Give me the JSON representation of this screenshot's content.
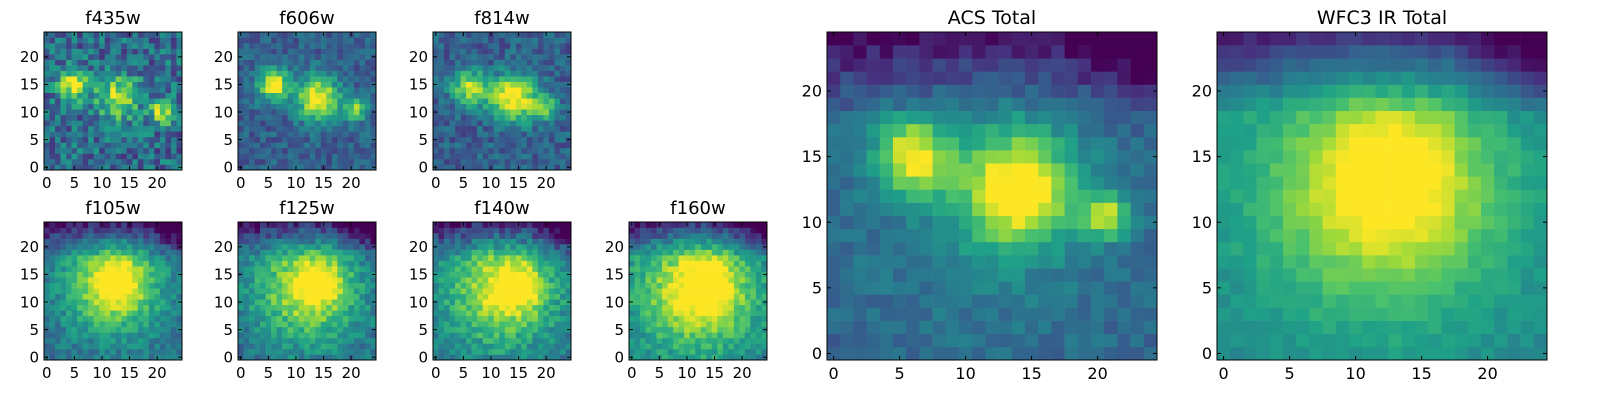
{
  "figure": {
    "description": "Grid of flux cutout images by filter with combined totals"
  },
  "colormap": [
    "#440154",
    "#46327e",
    "#365c8d",
    "#277f8e",
    "#1fa187",
    "#4ac16d",
    "#a0da39",
    "#fde725"
  ],
  "chart_data": [
    {
      "type": "heatmap",
      "title": "f435w",
      "grid_size": 25,
      "xlim": [
        0,
        24
      ],
      "ylim": [
        0,
        24
      ],
      "xticks": [
        "0",
        "5",
        "10",
        "15",
        "20"
      ],
      "yticks": [
        "0",
        "5",
        "10",
        "15",
        "20"
      ],
      "features": {
        "blobs": [
          {
            "x": 5,
            "y": 15,
            "s": 1.8,
            "a": 0.7
          },
          {
            "x": 13,
            "y": 12.5,
            "s": 2.6,
            "a": 0.6
          },
          {
            "x": 21,
            "y": 10,
            "s": 1.6,
            "a": 0.55
          }
        ],
        "noise": 0.35,
        "base": 0.35
      }
    },
    {
      "type": "heatmap",
      "title": "f606w",
      "grid_size": 25,
      "xlim": [
        0,
        24
      ],
      "ylim": [
        0,
        24
      ],
      "xticks": [
        "0",
        "5",
        "10",
        "15",
        "20"
      ],
      "yticks": [
        "0",
        "5",
        "10",
        "15",
        "20"
      ],
      "features": {
        "blobs": [
          {
            "x": 6,
            "y": 15,
            "s": 2.0,
            "a": 0.7
          },
          {
            "x": 14,
            "y": 12.5,
            "s": 2.8,
            "a": 0.7
          },
          {
            "x": 21,
            "y": 10.5,
            "s": 1.5,
            "a": 0.5
          }
        ],
        "noise": 0.2,
        "base": 0.3
      }
    },
    {
      "type": "heatmap",
      "title": "f814w",
      "grid_size": 25,
      "xlim": [
        0,
        24
      ],
      "ylim": [
        0,
        24
      ],
      "xticks": [
        "0",
        "5",
        "10",
        "15",
        "20"
      ],
      "yticks": [
        "0",
        "5",
        "10",
        "15",
        "20"
      ],
      "features": {
        "blobs": [
          {
            "x": 6,
            "y": 14.5,
            "s": 2.2,
            "a": 0.6
          },
          {
            "x": 14,
            "y": 12.5,
            "s": 3.0,
            "a": 0.75
          },
          {
            "x": 20,
            "y": 11,
            "s": 1.7,
            "a": 0.4
          }
        ],
        "noise": 0.22,
        "base": 0.3
      }
    },
    {
      "type": "heatmap",
      "title": "f105w",
      "grid_size": 25,
      "xlim": [
        0,
        24
      ],
      "ylim": [
        0,
        24
      ],
      "xticks": [
        "0",
        "5",
        "10",
        "15",
        "20"
      ],
      "yticks": [
        "0",
        "5",
        "10",
        "15",
        "20"
      ],
      "features": {
        "blobs": [
          {
            "x": 12,
            "y": 13,
            "s": 6.5,
            "a": 0.55
          },
          {
            "x": 13,
            "y": 13.5,
            "s": 3.0,
            "a": 0.3
          }
        ],
        "noise": 0.18,
        "base": 0.35,
        "topfade": 0.35
      }
    },
    {
      "type": "heatmap",
      "title": "f125w",
      "grid_size": 25,
      "xlim": [
        0,
        24
      ],
      "ylim": [
        0,
        24
      ],
      "xticks": [
        "0",
        "5",
        "10",
        "15",
        "20"
      ],
      "yticks": [
        "0",
        "5",
        "10",
        "15",
        "20"
      ],
      "features": {
        "blobs": [
          {
            "x": 12,
            "y": 12.5,
            "s": 7.0,
            "a": 0.55
          },
          {
            "x": 14,
            "y": 13.5,
            "s": 3.0,
            "a": 0.3
          }
        ],
        "noise": 0.2,
        "base": 0.35,
        "topfade": 0.35
      }
    },
    {
      "type": "heatmap",
      "title": "f140w",
      "grid_size": 25,
      "xlim": [
        0,
        24
      ],
      "ylim": [
        0,
        24
      ],
      "xticks": [
        "0",
        "5",
        "10",
        "15",
        "20"
      ],
      "yticks": [
        "0",
        "5",
        "10",
        "15",
        "20"
      ],
      "features": {
        "blobs": [
          {
            "x": 12,
            "y": 12,
            "s": 7.0,
            "a": 0.55
          },
          {
            "x": 15,
            "y": 13,
            "s": 3.0,
            "a": 0.3
          }
        ],
        "noise": 0.2,
        "base": 0.38,
        "topfade": 0.35
      }
    },
    {
      "type": "heatmap",
      "title": "f160w",
      "grid_size": 25,
      "xlim": [
        0,
        24
      ],
      "ylim": [
        0,
        24
      ],
      "xticks": [
        "0",
        "5",
        "10",
        "15",
        "20"
      ],
      "yticks": [
        "0",
        "5",
        "10",
        "15",
        "20"
      ],
      "features": {
        "blobs": [
          {
            "x": 12,
            "y": 12,
            "s": 7.5,
            "a": 0.6
          },
          {
            "x": 14,
            "y": 13,
            "s": 3.0,
            "a": 0.3
          }
        ],
        "noise": 0.18,
        "base": 0.42,
        "topfade": 0.4
      }
    },
    {
      "type": "heatmap",
      "title": "ACS Total",
      "grid_size": 25,
      "xlim": [
        0,
        24
      ],
      "ylim": [
        0,
        24
      ],
      "xticks": [
        "0",
        "5",
        "10",
        "15",
        "20"
      ],
      "yticks": [
        "0",
        "5",
        "10",
        "15",
        "20"
      ],
      "features": {
        "blobs": [
          {
            "x": 6,
            "y": 15,
            "s": 2.0,
            "a": 0.6
          },
          {
            "x": 14,
            "y": 12.5,
            "s": 2.8,
            "a": 0.7
          },
          {
            "x": 20.5,
            "y": 10.5,
            "s": 1.2,
            "a": 0.55
          },
          {
            "x": 12,
            "y": 12,
            "s": 7.0,
            "a": 0.15
          }
        ],
        "noise": 0.12,
        "base": 0.32,
        "topfade": 0.3
      }
    },
    {
      "type": "heatmap",
      "title": "WFC3 IR Total",
      "grid_size": 25,
      "xlim": [
        0,
        24
      ],
      "ylim": [
        0,
        24
      ],
      "xticks": [
        "0",
        "5",
        "10",
        "15",
        "20"
      ],
      "yticks": [
        "0",
        "5",
        "10",
        "15",
        "20"
      ],
      "features": {
        "blobs": [
          {
            "x": 12,
            "y": 12.5,
            "s": 7.0,
            "a": 0.5
          },
          {
            "x": 13,
            "y": 13.5,
            "s": 3.2,
            "a": 0.25
          }
        ],
        "noise": 0.08,
        "base": 0.45,
        "topfade": 0.4
      }
    }
  ]
}
